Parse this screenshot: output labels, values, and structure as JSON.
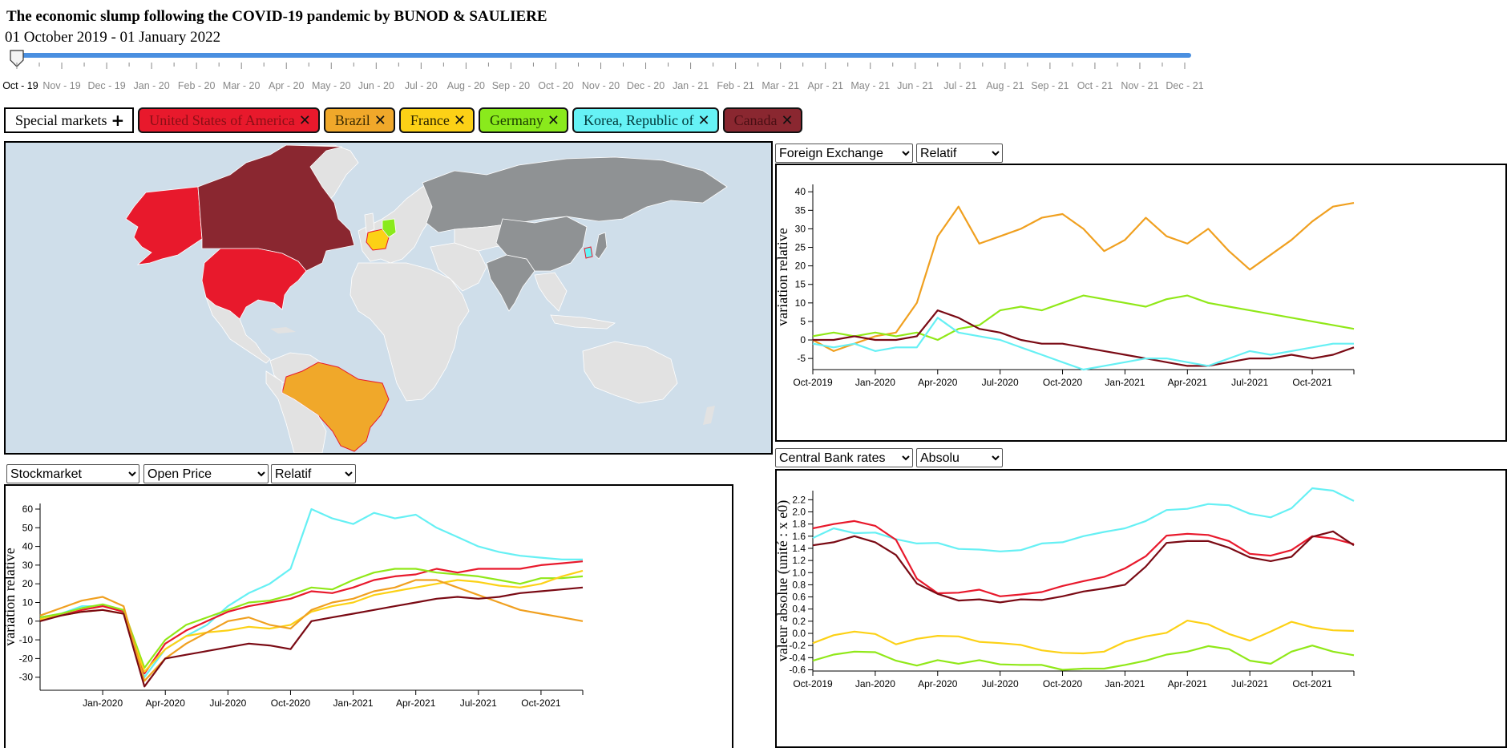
{
  "header": {
    "title": "The economic slump following the COVID-19 pandemic by BUNOD & SAULIERE",
    "date_range": "01 October 2019 - 01 January 2022"
  },
  "timeline": {
    "months": [
      "Oct - 19",
      "Nov - 19",
      "Dec - 19",
      "Jan - 20",
      "Feb - 20",
      "Mar - 20",
      "Apr - 20",
      "May - 20",
      "Jun - 20",
      "Jul - 20",
      "Aug - 20",
      "Sep - 20",
      "Oct - 20",
      "Nov - 20",
      "Dec - 20",
      "Jan - 21",
      "Feb - 21",
      "Mar - 21",
      "Apr - 21",
      "May - 21",
      "Jun - 21",
      "Jul - 21",
      "Aug - 21",
      "Sep - 21",
      "Oct - 21",
      "Nov - 21",
      "Dec - 21"
    ],
    "accent": "#4a8fe0"
  },
  "markets": {
    "special_label": "Special markets",
    "add_icon": "plus-icon",
    "remove_icon": "close-icon",
    "items": [
      {
        "label": "United States of America",
        "bg": "#e8192c",
        "fg": "#8a0f16"
      },
      {
        "label": "Brazil",
        "bg": "#f0a82a",
        "fg": "#3a2a00"
      },
      {
        "label": "France",
        "bg": "#fcd116",
        "fg": "#2a2400"
      },
      {
        "label": "Germany",
        "bg": "#8aea1c",
        "fg": "#1a3a00"
      },
      {
        "label": "Korea, Republic of",
        "bg": "#66f2f5",
        "fg": "#00393a"
      },
      {
        "label": "Canada",
        "bg": "#8a2730",
        "fg": "#4a0f14"
      }
    ]
  },
  "fx": {
    "select_indicator": "Foreign Exchange",
    "select_mode": "Relatif",
    "ylabel": "variation relative",
    "yticks": [
      "-5",
      "0",
      "5",
      "10",
      "15",
      "20",
      "25",
      "30",
      "35",
      "40"
    ],
    "xticks": [
      "Oct-2019",
      "Jan-2020",
      "Apr-2020",
      "Jul-2020",
      "Oct-2020",
      "Jan-2021",
      "Apr-2021",
      "Jul-2021",
      "Oct-2021"
    ]
  },
  "stock": {
    "select_indicator": "Stockmarket",
    "select_price": "Open Price",
    "select_mode": "Relatif",
    "ylabel": "variation relative",
    "yticks": [
      "-30",
      "-20",
      "-10",
      "0",
      "10",
      "20",
      "30",
      "40",
      "50",
      "60"
    ],
    "xticks": [
      "Jan-2020",
      "Apr-2020",
      "Jul-2020",
      "Oct-2020",
      "Jan-2021",
      "Apr-2021",
      "Jul-2021",
      "Oct-2021"
    ]
  },
  "cb": {
    "select_indicator": "Central Bank rates",
    "select_mode": "Absolu",
    "ylabel": "valeur absolue (unité : x e0)",
    "yticks": [
      "-0.6",
      "-0.4",
      "-0.2",
      "0.0",
      "0.2",
      "0.4",
      "0.6",
      "0.8",
      "1.0",
      "1.2",
      "1.4",
      "1.6",
      "1.8",
      "2.0",
      "2.2"
    ],
    "xticks": [
      "Oct-2019",
      "Jan-2020",
      "Apr-2020",
      "Jul-2020",
      "Oct-2020",
      "Jan-2021",
      "Apr-2021",
      "Jul-2021",
      "Oct-2021"
    ]
  },
  "chart_data": [
    {
      "type": "line",
      "ylabel": "variation relative",
      "x": [
        0,
        1,
        2,
        3,
        4,
        5,
        6,
        7,
        8,
        9,
        10,
        11,
        12,
        13,
        14,
        15,
        16,
        17,
        18,
        19,
        20,
        21,
        22,
        23,
        24,
        25,
        26
      ],
      "series": [
        {
          "name": "Brazil",
          "color": "#f0a020",
          "values": [
            0,
            -3,
            -1,
            1,
            2,
            10,
            28,
            36,
            26,
            28,
            30,
            33,
            34,
            30,
            24,
            27,
            33,
            28,
            26,
            30,
            24,
            19,
            23,
            27,
            32,
            36,
            37
          ]
        },
        {
          "name": "Germany",
          "color": "#90e818",
          "values": [
            1,
            2,
            1,
            2,
            1,
            2,
            0,
            3,
            4,
            8,
            9,
            8,
            10,
            12,
            11,
            10,
            9,
            11,
            12,
            10,
            9,
            8,
            7,
            6,
            5,
            4,
            3
          ]
        },
        {
          "name": "Canada",
          "color": "#7a0a14",
          "values": [
            0,
            0,
            1,
            0,
            0,
            1,
            8,
            6,
            3,
            2,
            0,
            -1,
            -1,
            -2,
            -3,
            -4,
            -5,
            -6,
            -7,
            -7,
            -6,
            -5,
            -5,
            -4,
            -5,
            -4,
            -2
          ]
        },
        {
          "name": "Korea, Republic of",
          "color": "#66f0f4",
          "values": [
            -1,
            -2,
            -1,
            -3,
            -2,
            -2,
            6,
            2,
            1,
            0,
            -2,
            -4,
            -6,
            -8,
            -7,
            -6,
            -5,
            -5,
            -6,
            -7,
            -5,
            -3,
            -4,
            -3,
            -2,
            -1,
            -1
          ]
        }
      ]
    },
    {
      "type": "line",
      "ylabel": "variation relative",
      "x": [
        0,
        1,
        2,
        3,
        4,
        5,
        6,
        7,
        8,
        9,
        10,
        11,
        12,
        13,
        14,
        15,
        16,
        17,
        18,
        19,
        20,
        21,
        22,
        23,
        24,
        25,
        26
      ],
      "series": [
        {
          "name": "Korea, Republic of",
          "color": "#66f0f4",
          "values": [
            2,
            4,
            8,
            8,
            6,
            -30,
            -15,
            -8,
            -2,
            8,
            15,
            20,
            28,
            60,
            55,
            52,
            58,
            55,
            57,
            50,
            45,
            40,
            37,
            35,
            34,
            33,
            33
          ]
        },
        {
          "name": "United States of America",
          "color": "#e8192c",
          "values": [
            1,
            3,
            6,
            8,
            5,
            -28,
            -12,
            -5,
            0,
            5,
            8,
            10,
            12,
            16,
            15,
            18,
            22,
            24,
            25,
            28,
            26,
            28,
            28,
            28,
            30,
            31,
            32
          ]
        },
        {
          "name": "Germany",
          "color": "#90e818",
          "values": [
            2,
            4,
            7,
            9,
            6,
            -25,
            -10,
            -2,
            2,
            6,
            10,
            11,
            14,
            18,
            17,
            22,
            26,
            28,
            28,
            26,
            25,
            24,
            22,
            20,
            23,
            23,
            24
          ]
        },
        {
          "name": "France",
          "color": "#fcd116",
          "values": [
            1,
            3,
            5,
            6,
            4,
            -27,
            -15,
            -8,
            -6,
            -5,
            -3,
            -4,
            -2,
            5,
            8,
            10,
            14,
            16,
            18,
            20,
            22,
            21,
            19,
            18,
            20,
            24,
            27
          ]
        },
        {
          "name": "Brazil",
          "color": "#f0a020",
          "values": [
            3,
            7,
            11,
            13,
            8,
            -32,
            -20,
            -12,
            -6,
            0,
            2,
            -2,
            -4,
            6,
            10,
            12,
            16,
            18,
            22,
            22,
            18,
            14,
            10,
            6,
            4,
            2,
            0
          ]
        },
        {
          "name": "Canada",
          "color": "#7a0a14",
          "values": [
            0,
            3,
            5,
            6,
            4,
            -35,
            -20,
            -18,
            -16,
            -14,
            -12,
            -13,
            -15,
            0,
            2,
            4,
            6,
            8,
            10,
            12,
            13,
            12,
            13,
            15,
            16,
            17,
            18
          ]
        }
      ]
    },
    {
      "type": "line",
      "ylabel": "valeur absolue (unité : x e0)",
      "x": [
        0,
        1,
        2,
        3,
        4,
        5,
        6,
        7,
        8,
        9,
        10,
        11,
        12,
        13,
        14,
        15,
        16,
        17,
        18,
        19,
        20,
        21,
        22,
        23,
        24,
        25,
        26
      ],
      "series": [
        {
          "name": "Korea, Republic of",
          "color": "#66f0f4",
          "values": [
            1.57,
            1.73,
            1.65,
            1.66,
            1.55,
            1.48,
            1.49,
            1.39,
            1.38,
            1.35,
            1.37,
            1.48,
            1.5,
            1.6,
            1.67,
            1.73,
            1.85,
            2.03,
            2.05,
            2.13,
            2.11,
            1.97,
            1.91,
            2.06,
            2.39,
            2.35,
            2.18
          ]
        },
        {
          "name": "United States of America",
          "color": "#e8192c",
          "values": [
            1.73,
            1.8,
            1.85,
            1.77,
            1.54,
            0.9,
            0.66,
            0.67,
            0.72,
            0.61,
            0.64,
            0.68,
            0.78,
            0.86,
            0.93,
            1.07,
            1.27,
            1.61,
            1.64,
            1.62,
            1.52,
            1.31,
            1.28,
            1.37,
            1.6,
            1.56,
            1.47
          ]
        },
        {
          "name": "Canada",
          "color": "#7a0a14",
          "values": [
            1.45,
            1.5,
            1.6,
            1.5,
            1.29,
            0.82,
            0.65,
            0.54,
            0.56,
            0.51,
            0.56,
            0.55,
            0.61,
            0.69,
            0.74,
            0.8,
            1.1,
            1.49,
            1.52,
            1.52,
            1.41,
            1.25,
            1.19,
            1.26,
            1.59,
            1.68,
            1.45
          ]
        },
        {
          "name": "France",
          "color": "#fcd116",
          "values": [
            -0.16,
            -0.03,
            0.03,
            -0.01,
            -0.18,
            -0.09,
            -0.04,
            -0.05,
            -0.14,
            -0.16,
            -0.19,
            -0.28,
            -0.32,
            -0.33,
            -0.3,
            -0.14,
            -0.05,
            0.01,
            0.21,
            0.15,
            -0.01,
            -0.12,
            0.03,
            0.19,
            0.1,
            0.05,
            0.04
          ]
        },
        {
          "name": "Germany",
          "color": "#90e818",
          "values": [
            -0.45,
            -0.35,
            -0.3,
            -0.31,
            -0.45,
            -0.53,
            -0.44,
            -0.5,
            -0.44,
            -0.51,
            -0.52,
            -0.52,
            -0.6,
            -0.58,
            -0.58,
            -0.52,
            -0.45,
            -0.35,
            -0.3,
            -0.21,
            -0.26,
            -0.45,
            -0.5,
            -0.3,
            -0.2,
            -0.3,
            -0.36
          ]
        }
      ]
    }
  ]
}
